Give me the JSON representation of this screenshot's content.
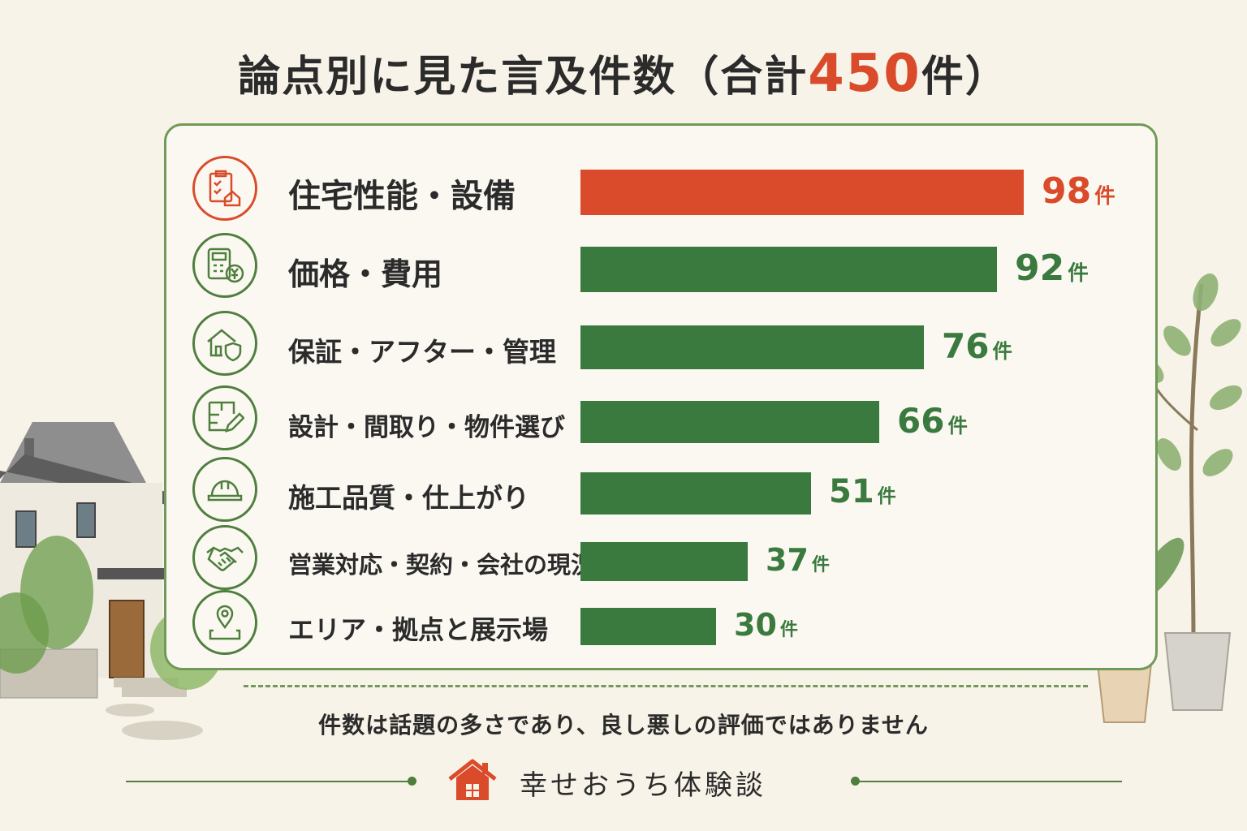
{
  "header": {
    "title_main": "論点別に見た言及件数（合計",
    "title_total": "450",
    "title_tail": "件）"
  },
  "colors": {
    "highlight": "#d94b2b",
    "bar": "#3a7a3e",
    "frame": "#6f9a57"
  },
  "chart_data": {
    "type": "bar",
    "orientation": "horizontal",
    "categories": [
      "住宅性能・設備",
      "価格・費用",
      "保証・アフター・管理",
      "設計・間取り・物件選び",
      "施工品質・仕上がり",
      "営業対応・契約・会社の現況",
      "エリア・拠点と展示場"
    ],
    "values": [
      98,
      92,
      76,
      66,
      51,
      37,
      30
    ],
    "value_labels": [
      "98",
      "92",
      "76",
      "66",
      "51",
      "37",
      "30"
    ],
    "unit": "件",
    "highlight_index": 0,
    "icons": [
      "clipboard-checklist-house-icon",
      "calculator-yen-icon",
      "house-shield-icon",
      "floorplan-pencil-icon",
      "hard-hat-icon",
      "handshake-icon",
      "map-pin-icon"
    ],
    "grid": false
  },
  "note": "件数は話題の多さであり、良し悪しの評価ではありません",
  "footer": {
    "brand": "幸せおうち体験談",
    "brand_icon": "house-icon"
  }
}
